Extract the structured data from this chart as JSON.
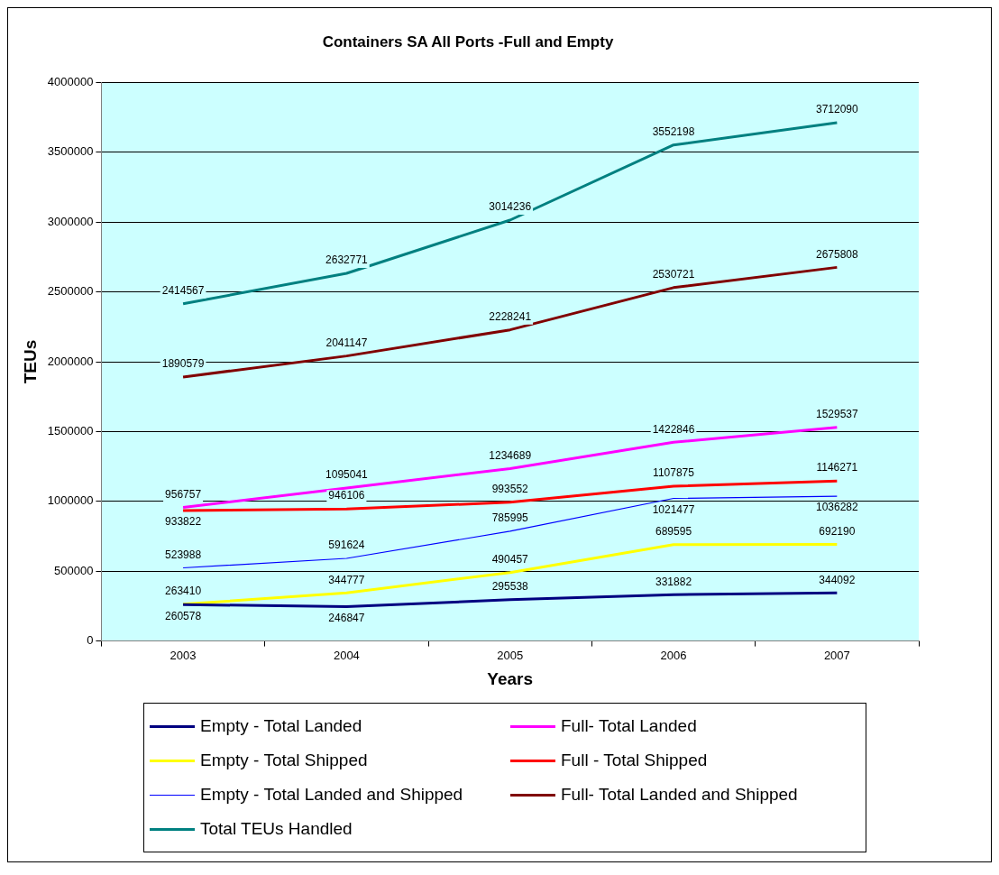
{
  "chart_data": {
    "type": "line",
    "title": "Containers SA All Ports -Full and Empty",
    "xlabel": "Years",
    "ylabel": "TEUs",
    "categories": [
      "2003",
      "2004",
      "2005",
      "2006",
      "2007"
    ],
    "series": [
      {
        "name": "Empty - Total Landed",
        "color": "#000080",
        "values": [
          260578,
          246847,
          295538,
          331882,
          344092
        ]
      },
      {
        "name": "Full- Total Landed",
        "color": "#ff00ff",
        "values": [
          956757,
          1095041,
          1234689,
          1422846,
          1529537
        ]
      },
      {
        "name": "Empty - Total Shipped",
        "color": "#ffff00",
        "values": [
          263410,
          344777,
          490457,
          689595,
          692190
        ]
      },
      {
        "name": "Full - Total Shipped",
        "color": "#ff0000",
        "values": [
          933822,
          946106,
          993552,
          1107875,
          1146271
        ]
      },
      {
        "name": "Empty - Total Landed and Shipped",
        "color": "#0000ff",
        "values": [
          523988,
          591624,
          785995,
          1021477,
          1036282
        ]
      },
      {
        "name": "Full- Total Landed and Shipped",
        "color": "#800000",
        "values": [
          1890579,
          2041147,
          2228241,
          2530721,
          2675808
        ]
      },
      {
        "name": "Total TEUs Handled",
        "color": "#008080",
        "values": [
          2414567,
          2632771,
          3014236,
          3552198,
          3712090
        ]
      }
    ],
    "ylim": [
      0,
      4000000
    ],
    "yticks": [
      0,
      500000,
      1000000,
      1500000,
      2000000,
      2500000,
      3000000,
      3500000,
      4000000
    ],
    "grid": "y",
    "legend": "bottom",
    "data_labels": true,
    "marker": "none",
    "line_style": "solid"
  }
}
